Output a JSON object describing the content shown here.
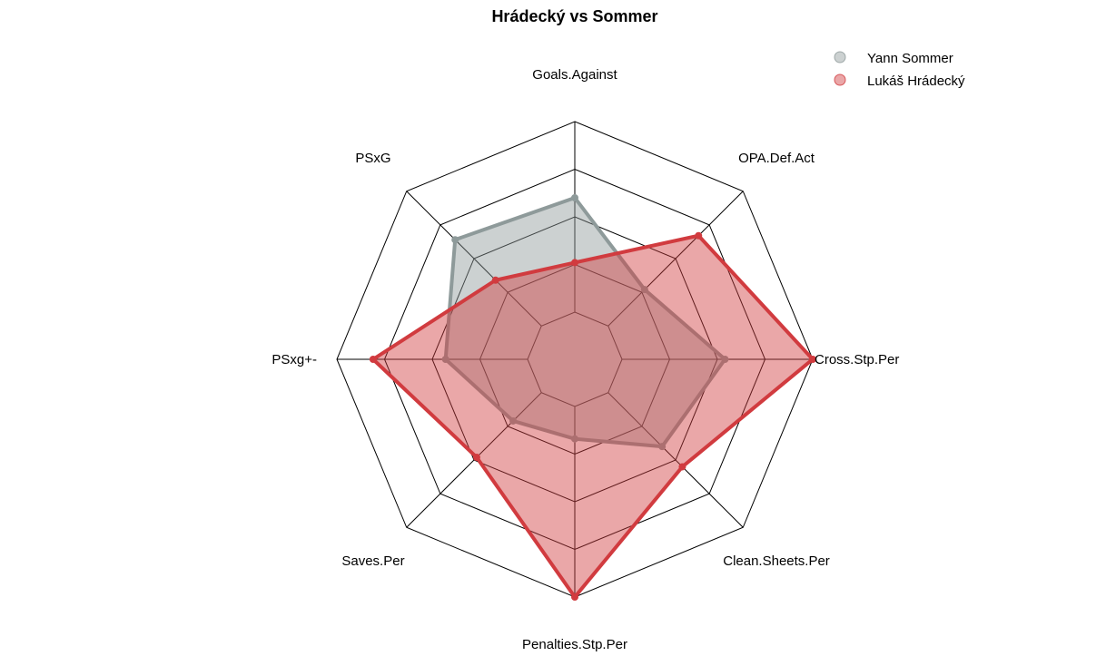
{
  "chart_data": {
    "type": "radar",
    "title": "Hrádecký vs Sommer",
    "axes": [
      "Goals.Against",
      "OPA.Def.Act",
      "Cross.Stp.Per",
      "Clean.Sheets.Per",
      "Penalties.Stp.Per",
      "Saves.Per",
      "PSxg+-",
      "PSxG"
    ],
    "range": [
      0,
      1
    ],
    "grid_levels": 5,
    "legend_position": "top-right",
    "series": [
      {
        "name": "Yann Sommer",
        "color": "#8E9A9A",
        "fill": "#8E9A9A",
        "values": [
          0.6,
          0.27,
          0.54,
          0.4,
          0.17,
          0.21,
          0.43,
          0.64
        ]
      },
      {
        "name": "Lukáš Hrádecký",
        "color": "#D13B3F",
        "fill": "#D13B3F",
        "values": [
          0.26,
          0.67,
          1.0,
          0.55,
          1.0,
          0.48,
          0.81,
          0.34
        ]
      }
    ]
  }
}
